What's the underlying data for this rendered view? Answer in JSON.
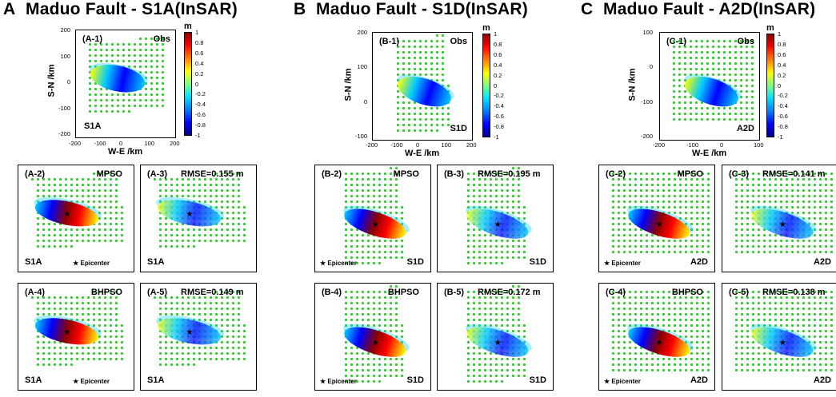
{
  "columns": [
    {
      "key": "A",
      "letter": "A",
      "title": "Maduo Fault - S1A(InSAR)",
      "obs": {
        "id": "(A-1)",
        "tag": "Obs",
        "track": "S1A",
        "xticks": [
          "-200",
          "-100",
          "0",
          "100",
          "200"
        ],
        "yticks": [
          "200",
          "100",
          "0",
          "-100",
          "-200"
        ]
      },
      "panels": [
        {
          "id": "(A-2)",
          "label": "MPSO",
          "track": "S1A",
          "epicenter": "★ Epicenter"
        },
        {
          "id": "(A-3)",
          "label": "RMSE=0.155 m",
          "track": "S1A"
        },
        {
          "id": "(A-4)",
          "label": "BHPSO",
          "track": "S1A",
          "epicenter": "★ Epicenter"
        },
        {
          "id": "(A-5)",
          "label": "RMSE=0.149 m",
          "track": "S1A"
        }
      ]
    },
    {
      "key": "B",
      "letter": "B",
      "title": "Maduo Fault - S1D(InSAR)",
      "obs": {
        "id": "(B-1)",
        "tag": "Obs",
        "track": "S1D",
        "xticks": [
          "-200",
          "-100",
          "0",
          "100",
          "200"
        ],
        "yticks": [
          "200",
          "100",
          "0",
          "-100"
        ]
      },
      "panels": [
        {
          "id": "(B-2)",
          "label": "MPSO",
          "track": "S1D",
          "epicenter": "★ Epicenter"
        },
        {
          "id": "(B-3)",
          "label": "RMSE=0.195 m",
          "track": "S1D"
        },
        {
          "id": "(B-4)",
          "label": "BHPSO",
          "track": "S1D",
          "epicenter": "★ Epicenter"
        },
        {
          "id": "(B-5)",
          "label": "RMSE=0.172 m",
          "track": "S1D"
        }
      ]
    },
    {
      "key": "C",
      "letter": "C",
      "title": "Maduo Fault - A2D(InSAR)",
      "obs": {
        "id": "(C-1)",
        "tag": "Obs",
        "track": "A2D",
        "xticks": [
          "-200",
          "-100",
          "0",
          "100"
        ],
        "yticks": [
          "100",
          "0",
          "-100",
          "-200"
        ]
      },
      "panels": [
        {
          "id": "(C-2)",
          "label": "MPSO",
          "track": "A2D",
          "epicenter": "★ Epicenter"
        },
        {
          "id": "(C-3)",
          "label": "RMSE=0.141 m",
          "track": "A2D"
        },
        {
          "id": "(C-4)",
          "label": "BHPSO",
          "track": "A2D",
          "epicenter": "★ Epicenter"
        },
        {
          "id": "(C-5)",
          "label": "RMSE=0.138 m",
          "track": "A2D"
        }
      ]
    }
  ],
  "axes": {
    "xlabel": "W-E /km",
    "ylabel": "S-N /km"
  },
  "colorbar": {
    "unit": "m",
    "ticks": [
      "1",
      "0.8",
      "0.6",
      "0.4",
      "0.2",
      "0",
      "-0.2",
      "-0.4",
      "-0.6",
      "-0.8",
      "-1"
    ]
  },
  "colors": {
    "dots": "#33cc33",
    "blue": "#0000ff",
    "red": "#ff0000",
    "yellow": "#ffff00",
    "cyan": "#00ccff"
  }
}
